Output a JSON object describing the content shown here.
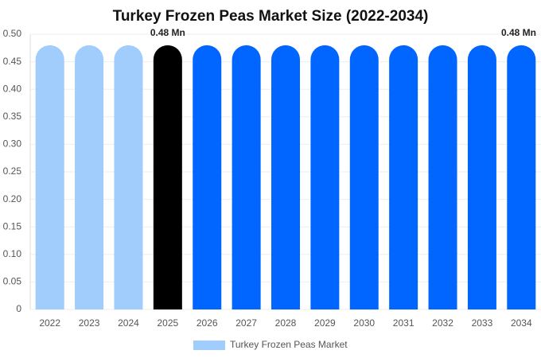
{
  "chart_data": {
    "type": "bar",
    "title": "Turkey Frozen Peas Market Size (2022-2034)",
    "categories": [
      "2022",
      "2023",
      "2024",
      "2025",
      "2026",
      "2027",
      "2028",
      "2029",
      "2030",
      "2031",
      "2032",
      "2033",
      "2034"
    ],
    "series": [
      {
        "name": "Turkey Frozen Peas Market",
        "color": "#a0cdfb",
        "values": [
          0.48,
          0.48,
          0.48,
          0.48,
          0.48,
          0.48,
          0.48,
          0.48,
          0.48,
          0.48,
          0.48,
          0.48,
          0.48
        ],
        "colors": [
          "#a0cdfb",
          "#a0cdfb",
          "#a0cdfb",
          "#000000",
          "#0066ff",
          "#0066ff",
          "#0066ff",
          "#0066ff",
          "#0066ff",
          "#0066ff",
          "#0066ff",
          "#0066ff",
          "#0066ff"
        ],
        "value_labels": [
          null,
          null,
          null,
          "0.48 Mn",
          null,
          null,
          null,
          null,
          null,
          null,
          null,
          null,
          "0.48 Mn"
        ]
      }
    ],
    "ylim": [
      0,
      0.5
    ],
    "yticks": [
      0,
      0.05,
      {
        "value": 0.1,
        "label": "0.10"
      },
      0.15,
      {
        "value": 0.2,
        "label": "0.20"
      },
      0.25,
      {
        "value": 0.3,
        "label": "0.30"
      },
      0.35,
      {
        "value": 0.4,
        "label": "0.40"
      },
      0.45,
      {
        "value": 0.5,
        "label": "0.50"
      }
    ],
    "grid": true
  }
}
